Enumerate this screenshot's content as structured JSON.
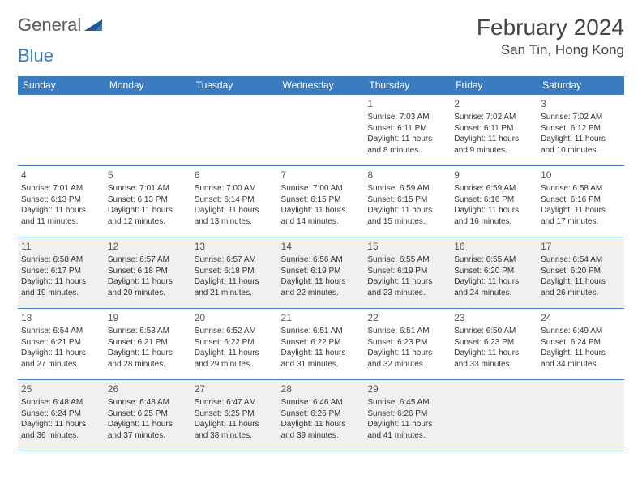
{
  "brand": {
    "part1": "General",
    "part2": "Blue"
  },
  "title": "February 2024",
  "location": "San Tin, Hong Kong",
  "colors": {
    "header_bg": "#3b7bbf",
    "header_text": "#ffffff",
    "border": "#3b7bbf",
    "alt_row_bg": "#f0f0f0",
    "body_text": "#333333",
    "logo_gray": "#5a5a5a",
    "logo_blue": "#3b7bbf"
  },
  "weekdays": [
    "Sunday",
    "Monday",
    "Tuesday",
    "Wednesday",
    "Thursday",
    "Friday",
    "Saturday"
  ],
  "weeks": [
    {
      "shaded": false,
      "days": [
        null,
        null,
        null,
        null,
        {
          "n": "1",
          "sr": "Sunrise: 7:03 AM",
          "ss": "Sunset: 6:11 PM",
          "dl1": "Daylight: 11 hours",
          "dl2": "and 8 minutes."
        },
        {
          "n": "2",
          "sr": "Sunrise: 7:02 AM",
          "ss": "Sunset: 6:11 PM",
          "dl1": "Daylight: 11 hours",
          "dl2": "and 9 minutes."
        },
        {
          "n": "3",
          "sr": "Sunrise: 7:02 AM",
          "ss": "Sunset: 6:12 PM",
          "dl1": "Daylight: 11 hours",
          "dl2": "and 10 minutes."
        }
      ]
    },
    {
      "shaded": false,
      "days": [
        {
          "n": "4",
          "sr": "Sunrise: 7:01 AM",
          "ss": "Sunset: 6:13 PM",
          "dl1": "Daylight: 11 hours",
          "dl2": "and 11 minutes."
        },
        {
          "n": "5",
          "sr": "Sunrise: 7:01 AM",
          "ss": "Sunset: 6:13 PM",
          "dl1": "Daylight: 11 hours",
          "dl2": "and 12 minutes."
        },
        {
          "n": "6",
          "sr": "Sunrise: 7:00 AM",
          "ss": "Sunset: 6:14 PM",
          "dl1": "Daylight: 11 hours",
          "dl2": "and 13 minutes."
        },
        {
          "n": "7",
          "sr": "Sunrise: 7:00 AM",
          "ss": "Sunset: 6:15 PM",
          "dl1": "Daylight: 11 hours",
          "dl2": "and 14 minutes."
        },
        {
          "n": "8",
          "sr": "Sunrise: 6:59 AM",
          "ss": "Sunset: 6:15 PM",
          "dl1": "Daylight: 11 hours",
          "dl2": "and 15 minutes."
        },
        {
          "n": "9",
          "sr": "Sunrise: 6:59 AM",
          "ss": "Sunset: 6:16 PM",
          "dl1": "Daylight: 11 hours",
          "dl2": "and 16 minutes."
        },
        {
          "n": "10",
          "sr": "Sunrise: 6:58 AM",
          "ss": "Sunset: 6:16 PM",
          "dl1": "Daylight: 11 hours",
          "dl2": "and 17 minutes."
        }
      ]
    },
    {
      "shaded": true,
      "days": [
        {
          "n": "11",
          "sr": "Sunrise: 6:58 AM",
          "ss": "Sunset: 6:17 PM",
          "dl1": "Daylight: 11 hours",
          "dl2": "and 19 minutes."
        },
        {
          "n": "12",
          "sr": "Sunrise: 6:57 AM",
          "ss": "Sunset: 6:18 PM",
          "dl1": "Daylight: 11 hours",
          "dl2": "and 20 minutes."
        },
        {
          "n": "13",
          "sr": "Sunrise: 6:57 AM",
          "ss": "Sunset: 6:18 PM",
          "dl1": "Daylight: 11 hours",
          "dl2": "and 21 minutes."
        },
        {
          "n": "14",
          "sr": "Sunrise: 6:56 AM",
          "ss": "Sunset: 6:19 PM",
          "dl1": "Daylight: 11 hours",
          "dl2": "and 22 minutes."
        },
        {
          "n": "15",
          "sr": "Sunrise: 6:55 AM",
          "ss": "Sunset: 6:19 PM",
          "dl1": "Daylight: 11 hours",
          "dl2": "and 23 minutes."
        },
        {
          "n": "16",
          "sr": "Sunrise: 6:55 AM",
          "ss": "Sunset: 6:20 PM",
          "dl1": "Daylight: 11 hours",
          "dl2": "and 24 minutes."
        },
        {
          "n": "17",
          "sr": "Sunrise: 6:54 AM",
          "ss": "Sunset: 6:20 PM",
          "dl1": "Daylight: 11 hours",
          "dl2": "and 26 minutes."
        }
      ]
    },
    {
      "shaded": false,
      "days": [
        {
          "n": "18",
          "sr": "Sunrise: 6:54 AM",
          "ss": "Sunset: 6:21 PM",
          "dl1": "Daylight: 11 hours",
          "dl2": "and 27 minutes."
        },
        {
          "n": "19",
          "sr": "Sunrise: 6:53 AM",
          "ss": "Sunset: 6:21 PM",
          "dl1": "Daylight: 11 hours",
          "dl2": "and 28 minutes."
        },
        {
          "n": "20",
          "sr": "Sunrise: 6:52 AM",
          "ss": "Sunset: 6:22 PM",
          "dl1": "Daylight: 11 hours",
          "dl2": "and 29 minutes."
        },
        {
          "n": "21",
          "sr": "Sunrise: 6:51 AM",
          "ss": "Sunset: 6:22 PM",
          "dl1": "Daylight: 11 hours",
          "dl2": "and 31 minutes."
        },
        {
          "n": "22",
          "sr": "Sunrise: 6:51 AM",
          "ss": "Sunset: 6:23 PM",
          "dl1": "Daylight: 11 hours",
          "dl2": "and 32 minutes."
        },
        {
          "n": "23",
          "sr": "Sunrise: 6:50 AM",
          "ss": "Sunset: 6:23 PM",
          "dl1": "Daylight: 11 hours",
          "dl2": "and 33 minutes."
        },
        {
          "n": "24",
          "sr": "Sunrise: 6:49 AM",
          "ss": "Sunset: 6:24 PM",
          "dl1": "Daylight: 11 hours",
          "dl2": "and 34 minutes."
        }
      ]
    },
    {
      "shaded": true,
      "days": [
        {
          "n": "25",
          "sr": "Sunrise: 6:48 AM",
          "ss": "Sunset: 6:24 PM",
          "dl1": "Daylight: 11 hours",
          "dl2": "and 36 minutes."
        },
        {
          "n": "26",
          "sr": "Sunrise: 6:48 AM",
          "ss": "Sunset: 6:25 PM",
          "dl1": "Daylight: 11 hours",
          "dl2": "and 37 minutes."
        },
        {
          "n": "27",
          "sr": "Sunrise: 6:47 AM",
          "ss": "Sunset: 6:25 PM",
          "dl1": "Daylight: 11 hours",
          "dl2": "and 38 minutes."
        },
        {
          "n": "28",
          "sr": "Sunrise: 6:46 AM",
          "ss": "Sunset: 6:26 PM",
          "dl1": "Daylight: 11 hours",
          "dl2": "and 39 minutes."
        },
        {
          "n": "29",
          "sr": "Sunrise: 6:45 AM",
          "ss": "Sunset: 6:26 PM",
          "dl1": "Daylight: 11 hours",
          "dl2": "and 41 minutes."
        },
        null,
        null
      ]
    }
  ]
}
